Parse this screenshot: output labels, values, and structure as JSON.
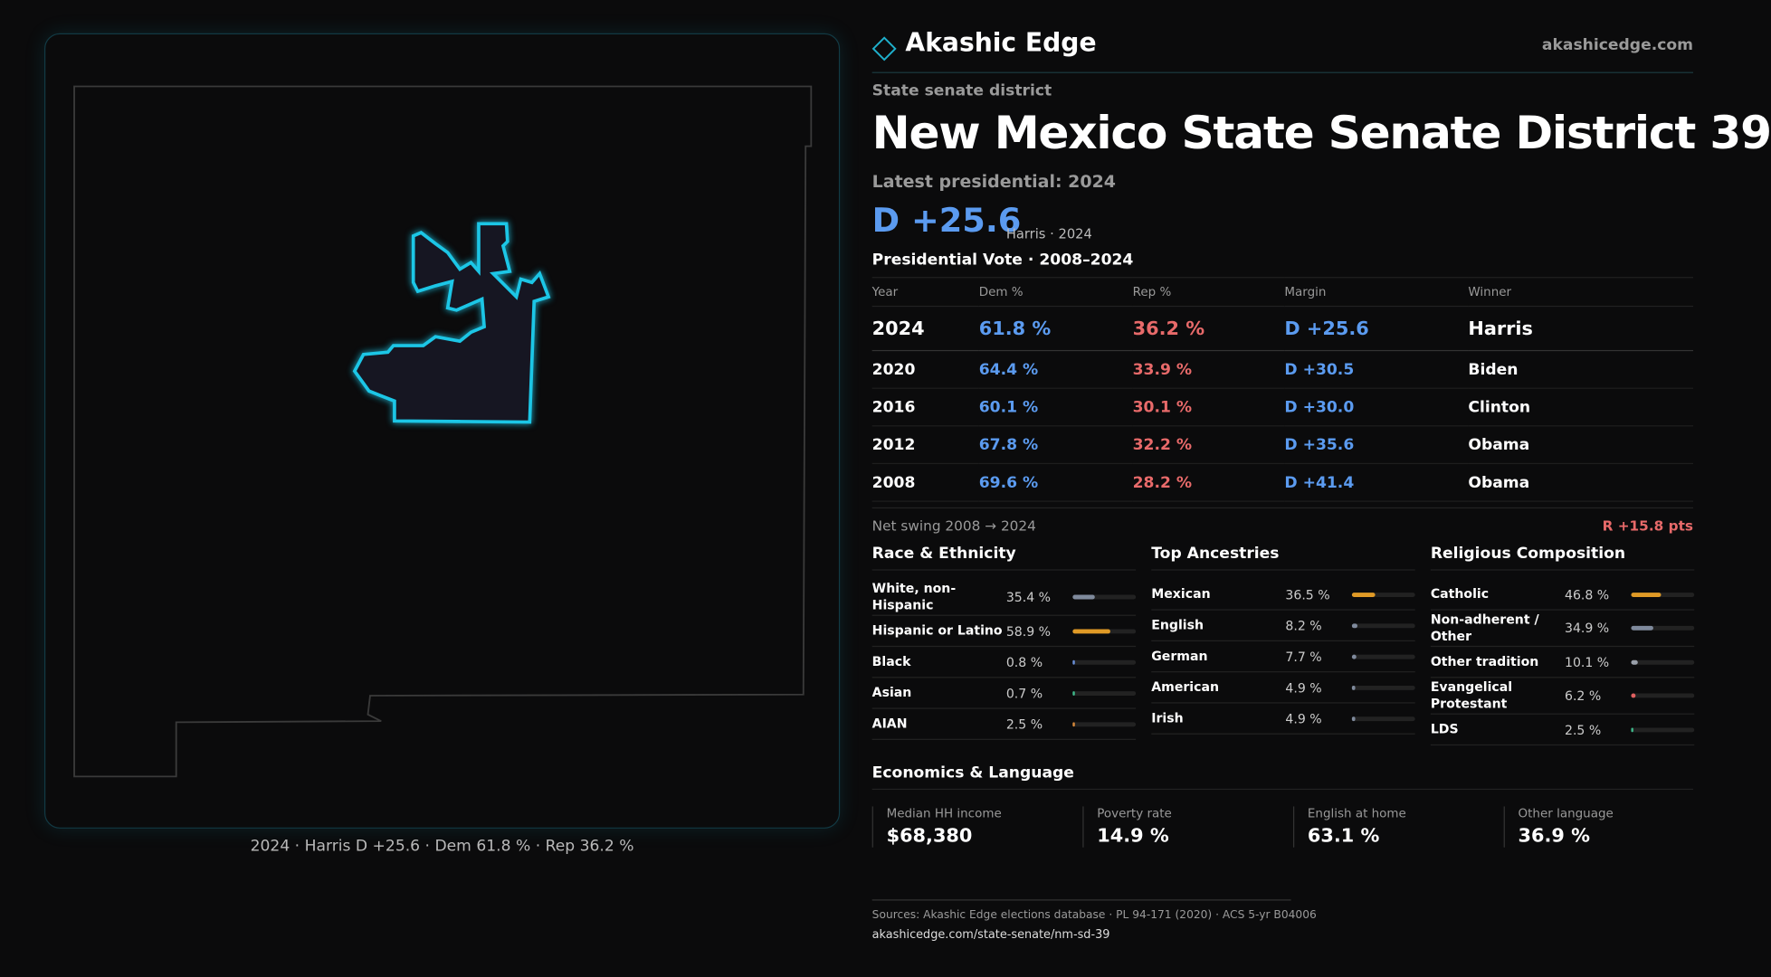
{
  "header": {
    "brand": "Akashic Edge",
    "site": "akashicedge.com"
  },
  "map": {
    "caption": "2024 · Harris D +25.6 · Dem 61.8 % · Rep 36.2 %"
  },
  "district": {
    "kicker": "State senate district",
    "title": "New Mexico State Senate District 39",
    "latest": "Latest presidential: 2024",
    "headline": "D +25.6",
    "headline_note": "Harris · 2024"
  },
  "vote_table": {
    "title": "Presidential Vote · 2008–2024",
    "columns": [
      "Year",
      "Dem %",
      "Rep %",
      "Margin",
      "Winner"
    ],
    "rows": [
      [
        "2024",
        "61.8 %",
        "36.2 %",
        "D +25.6",
        "Harris"
      ],
      [
        "2020",
        "64.4 %",
        "33.9 %",
        "D +30.5",
        "Biden"
      ],
      [
        "2016",
        "60.1 %",
        "30.1 %",
        "D +30.0",
        "Clinton"
      ],
      [
        "2012",
        "67.8 %",
        "32.2 %",
        "D +35.6",
        "Obama"
      ],
      [
        "2008",
        "69.6 %",
        "28.2 %",
        "D +41.4",
        "Obama"
      ]
    ]
  },
  "swing": {
    "label": "Net swing 2008 → 2024",
    "value": "R +15.8 pts"
  },
  "sections": [
    {
      "title": "Race & Ethnicity",
      "rows": [
        {
          "name": "White, non-Hispanic",
          "value": 35.4,
          "label": "35.4 %",
          "color": "#7f8a9c"
        },
        {
          "name": "Hispanic or Latino",
          "value": 58.9,
          "label": "58.9 %",
          "color": "#e09a26"
        },
        {
          "name": "Black",
          "value": 0.8,
          "label": "0.8 %",
          "color": "#6a8fd8"
        },
        {
          "name": "Asian",
          "value": 0.7,
          "label": "0.7 %",
          "color": "#3fb88a"
        },
        {
          "name": "AIAN",
          "value": 2.5,
          "label": "2.5 %",
          "color": "#d7893a"
        }
      ]
    },
    {
      "title": "Top Ancestries",
      "rows": [
        {
          "name": "Mexican",
          "value": 36.5,
          "label": "36.5 %",
          "color": "#e09a26"
        },
        {
          "name": "English",
          "value": 8.2,
          "label": "8.2 %",
          "color": "#7f8a9c"
        },
        {
          "name": "German",
          "value": 7.7,
          "label": "7.7 %",
          "color": "#7f8a9c"
        },
        {
          "name": "American",
          "value": 4.9,
          "label": "4.9 %",
          "color": "#7f8a9c"
        },
        {
          "name": "Irish",
          "value": 4.9,
          "label": "4.9 %",
          "color": "#7f8a9c"
        }
      ]
    },
    {
      "title": "Religious Composition",
      "rows": [
        {
          "name": "Catholic",
          "value": 46.8,
          "label": "46.8 %",
          "color": "#e09a26"
        },
        {
          "name": "Non-adherent / Other",
          "value": 34.9,
          "label": "34.9 %",
          "color": "#7f8a9c"
        },
        {
          "name": "Other tradition",
          "value": 10.1,
          "label": "10.1 %",
          "color": "#9aa0aa"
        },
        {
          "name": "Evangelical Protestant",
          "value": 6.2,
          "label": "6.2 %",
          "color": "#e06060"
        },
        {
          "name": "LDS",
          "value": 2.5,
          "label": "2.5 %",
          "color": "#3fb88a"
        }
      ]
    }
  ],
  "economics": {
    "title": "Economics & Language",
    "stats": [
      {
        "label": "Median HH income",
        "value": "$68,380"
      },
      {
        "label": "Poverty rate",
        "value": "14.9 %"
      },
      {
        "label": "English at home",
        "value": "63.1 %"
      },
      {
        "label": "Other language",
        "value": "36.9 %"
      }
    ]
  },
  "sources": {
    "text": "Sources: Akashic Edge elections database · PL 94-171 (2020) · ACS 5-yr B04006",
    "url": "akashicedge.com/state-senate/nm-sd-39"
  }
}
